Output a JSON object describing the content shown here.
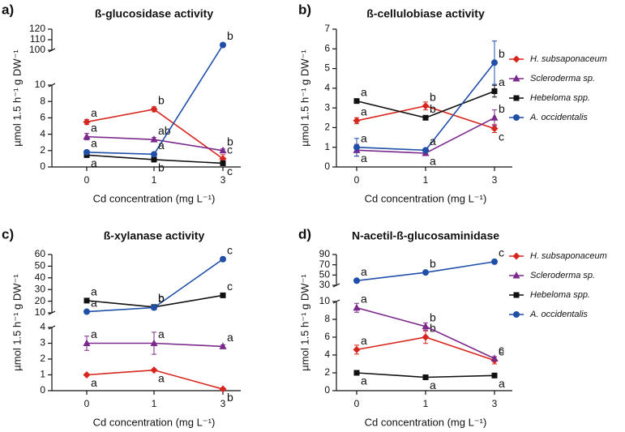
{
  "chart_data": [
    {
      "type": "line",
      "panel_label": "a)",
      "title": "ß-glucosidase activity",
      "x_label": "Cd concentration (mg L⁻¹)",
      "y_label": "µmol 1.5 h⁻¹ g DW⁻¹",
      "categories": [
        "0",
        "1",
        "3"
      ],
      "y_segments": [
        {
          "ylim": [
            0,
            10
          ],
          "yticks": [
            0,
            2,
            4,
            6,
            8,
            10
          ]
        },
        {
          "ylim": [
            100,
            120
          ],
          "yticks": [
            100,
            110,
            120
          ]
        }
      ],
      "series": [
        {
          "color": "#d7261e",
          "marker": "diamond",
          "values": [
            5.5,
            7.05,
            1.0
          ],
          "errors": [
            0.3,
            0.3,
            0.5
          ],
          "letters": [
            "a",
            "b",
            "c"
          ]
        },
        {
          "color": "#7b2a8c",
          "marker": "triangle",
          "values": [
            3.7,
            3.35,
            2.0
          ],
          "errors": [
            0.4,
            0.25,
            0.2
          ],
          "letters": [
            "a",
            "ab",
            "b"
          ]
        },
        {
          "color": "#111111",
          "marker": "square",
          "values": [
            1.45,
            0.9,
            0.45
          ],
          "errors": [
            0.1,
            0.1,
            0.05
          ],
          "letters": [
            "a",
            "b",
            "c"
          ]
        },
        {
          "color": "#1f4fa8",
          "marker": "circle",
          "values": [
            1.8,
            1.55,
            105
          ],
          "errors": [
            0.1,
            0.1,
            1
          ],
          "letters": [
            "a",
            "a",
            "b"
          ]
        }
      ]
    },
    {
      "type": "line",
      "panel_label": "b)",
      "title": "ß-cellulobiase activity",
      "x_label": "Cd concentration (mg L⁻¹)",
      "y_label": "µmol 1.5 h⁻¹ g DW⁻¹",
      "categories": [
        "0",
        "1",
        "3"
      ],
      "legend": "right",
      "y_segments": [
        {
          "ylim": [
            0,
            7
          ],
          "yticks": [
            0,
            1,
            2,
            3,
            4,
            5,
            6,
            7
          ]
        }
      ],
      "series": [
        {
          "name": "H. subsaponaceum",
          "color": "#d7261e",
          "marker": "diamond",
          "values": [
            2.35,
            3.1,
            1.95
          ],
          "errors": [
            0.15,
            0.2,
            0.2
          ],
          "letters": [
            "a",
            "b",
            "c"
          ]
        },
        {
          "name": "Scleroderma sp.",
          "color": "#7b2a8c",
          "marker": "triangle",
          "values": [
            0.85,
            0.7,
            2.5
          ],
          "errors": [
            0.3,
            0.1,
            0.4
          ],
          "letters": [
            "a",
            "a",
            "b"
          ]
        },
        {
          "name": "Hebeloma spp.",
          "color": "#111111",
          "marker": "square",
          "values": [
            3.35,
            2.5,
            3.85
          ],
          "errors": [
            0.05,
            0.05,
            0.3
          ],
          "letters": [
            "a",
            "b",
            "a"
          ]
        },
        {
          "name": "A. occidentalis",
          "color": "#1f4fa8",
          "marker": "circle",
          "values": [
            1.0,
            0.85,
            5.3
          ],
          "errors": [
            0.45,
            0.05,
            1.1
          ],
          "letters": [
            "a",
            "a",
            "b"
          ]
        }
      ]
    },
    {
      "type": "line",
      "panel_label": "c)",
      "title": "ß-xylanase activity",
      "x_label": "Cd concentration (mg L⁻¹)",
      "y_label": "µmol 1.5 h⁻¹ g DW⁻¹",
      "categories": [
        "0",
        "1",
        "3"
      ],
      "y_segments": [
        {
          "ylim": [
            0,
            4
          ],
          "yticks": [
            0,
            1,
            2,
            3,
            4
          ]
        },
        {
          "ylim": [
            10,
            60
          ],
          "yticks": [
            10,
            20,
            30,
            40,
            50,
            60
          ]
        }
      ],
      "series": [
        {
          "color": "#d7261e",
          "marker": "diamond",
          "values": [
            1.0,
            1.3,
            0.1
          ],
          "errors": [
            0.05,
            0.05,
            0.02
          ],
          "letters": [
            "a",
            "a",
            "b"
          ]
        },
        {
          "color": "#7b2a8c",
          "marker": "triangle",
          "values": [
            3.0,
            3.0,
            2.8
          ],
          "errors": [
            0.45,
            0.7,
            0.1
          ],
          "letters": [
            "a",
            "a",
            "a"
          ]
        },
        {
          "color": "#111111",
          "marker": "square",
          "values": [
            20.5,
            15,
            25
          ],
          "errors": [
            0.5,
            0.5,
            0.5
          ],
          "letters": [
            "a",
            "b",
            "c"
          ]
        },
        {
          "color": "#1f4fa8",
          "marker": "circle",
          "values": [
            11,
            14.5,
            56
          ],
          "errors": [
            0.5,
            0.5,
            1
          ],
          "letters": [
            "a",
            "b",
            "c"
          ]
        }
      ]
    },
    {
      "type": "line",
      "panel_label": "d)",
      "title": "N-acetil-ß-glucosaminidase",
      "x_label": "Cd concentration (mg L⁻¹)",
      "y_label": "µmol 1.5 h⁻¹ g DW⁻¹",
      "categories": [
        "0",
        "1",
        "3"
      ],
      "legend": "right",
      "y_segments": [
        {
          "ylim": [
            0,
            10
          ],
          "yticks": [
            0,
            2,
            4,
            6,
            8,
            10
          ]
        },
        {
          "ylim": [
            30,
            90
          ],
          "yticks": [
            30,
            50,
            70,
            90
          ]
        }
      ],
      "series": [
        {
          "name": "H. subsaponaceum",
          "color": "#d7261e",
          "marker": "diamond",
          "values": [
            4.6,
            6.0,
            3.4
          ],
          "errors": [
            0.5,
            0.7,
            0.4
          ],
          "letters": [
            "a",
            "b",
            "c"
          ]
        },
        {
          "name": "Scleroderma sp.",
          "color": "#7b2a8c",
          "marker": "triangle",
          "values": [
            9.3,
            7.2,
            3.6
          ],
          "errors": [
            0.5,
            0.4,
            0.2
          ],
          "letters": [
            "a",
            "b",
            "c"
          ]
        },
        {
          "name": "Hebeloma spp.",
          "color": "#111111",
          "marker": "square",
          "values": [
            2.0,
            1.5,
            1.7
          ],
          "errors": [
            0.1,
            0.1,
            0.1
          ],
          "letters": [
            "a",
            "a",
            "a"
          ]
        },
        {
          "name": "A. occidentalis",
          "color": "#1f4fa8",
          "marker": "circle",
          "values": [
            39,
            55,
            76
          ],
          "errors": [
            1,
            2,
            3
          ],
          "letters": [
            "a",
            "b",
            "c"
          ]
        }
      ]
    }
  ]
}
